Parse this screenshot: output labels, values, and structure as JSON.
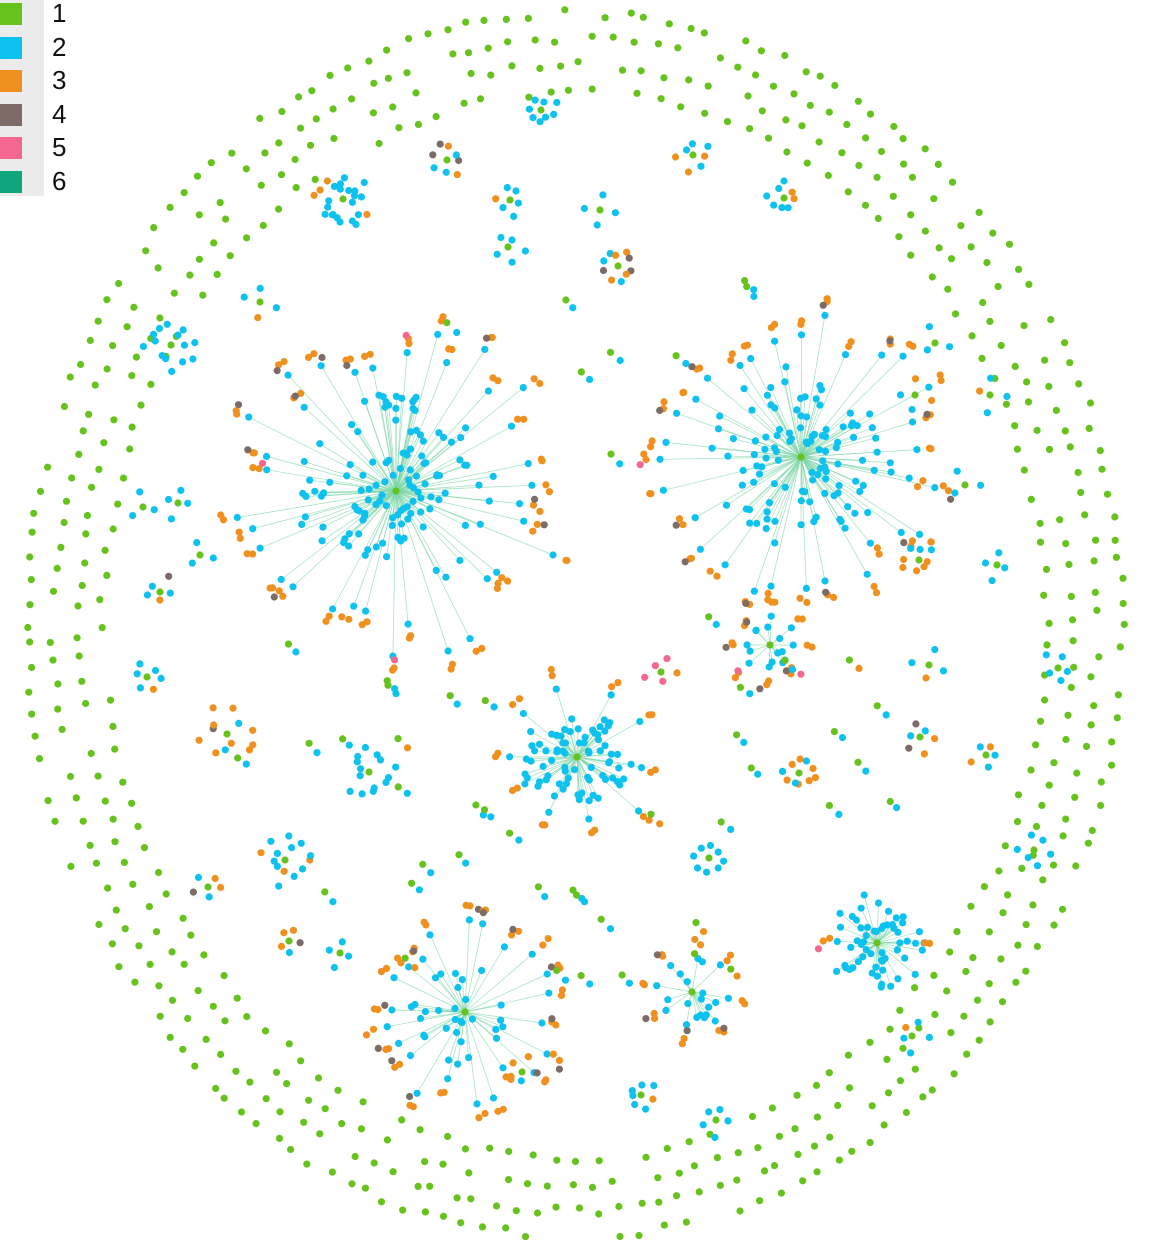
{
  "legend": {
    "items": [
      {
        "label": "1",
        "color": "#66c31d"
      },
      {
        "label": "2",
        "color": "#0ec2ef"
      },
      {
        "label": "3",
        "color": "#f0901e"
      },
      {
        "label": "4",
        "color": "#7c6b66"
      },
      {
        "label": "5",
        "color": "#f4688f"
      },
      {
        "label": "6",
        "color": "#0fa57d"
      }
    ]
  },
  "colors": {
    "edge": "#7fd6a8",
    "background": "#ffffff"
  }
}
